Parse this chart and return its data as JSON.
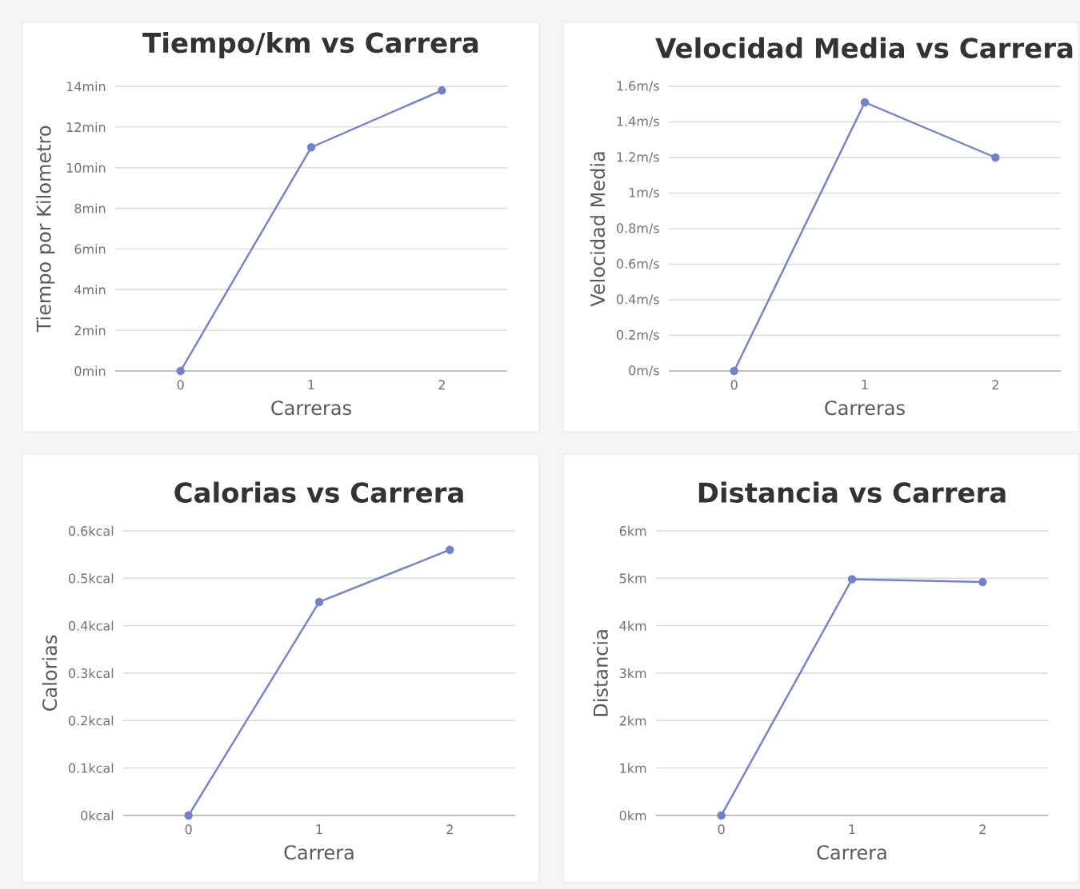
{
  "chart_data": [
    {
      "type": "line",
      "title": "Tiempo/km vs Carrera",
      "xlabel": "Carreras",
      "ylabel": "Tiempo por Kilometro",
      "x": [
        0,
        1,
        2
      ],
      "values": [
        0,
        11,
        13.8
      ],
      "color": "#7480c8",
      "marker": "circle",
      "grid": "y",
      "xlim": [
        -0.5,
        2.5
      ],
      "xticks": [
        0,
        1,
        2
      ],
      "ylim": [
        0,
        14
      ],
      "yticks": [
        {
          "value": 0,
          "label": "0min"
        },
        {
          "value": 2,
          "label": "2min"
        },
        {
          "value": 4,
          "label": "4min"
        },
        {
          "value": 6,
          "label": "6min"
        },
        {
          "value": 8,
          "label": "8min"
        },
        {
          "value": 10,
          "label": "10min"
        },
        {
          "value": 12,
          "label": "12min"
        },
        {
          "value": 14,
          "label": "14min"
        }
      ]
    },
    {
      "type": "line",
      "title": "Velocidad Media vs Carrera",
      "xlabel": "Carreras",
      "ylabel": "Velocidad Media",
      "x": [
        0,
        1,
        2
      ],
      "values": [
        0,
        1.51,
        1.2
      ],
      "color": "#7480c8",
      "marker": "circle",
      "grid": "y",
      "xlim": [
        -0.5,
        2.5
      ],
      "xticks": [
        0,
        1,
        2
      ],
      "ylim": [
        0,
        1.6
      ],
      "yticks": [
        {
          "value": 0,
          "label": "0m/s"
        },
        {
          "value": 0.2,
          "label": "0.2m/s"
        },
        {
          "value": 0.4,
          "label": "0.4m/s"
        },
        {
          "value": 0.6,
          "label": "0.6m/s"
        },
        {
          "value": 0.8,
          "label": "0.8m/s"
        },
        {
          "value": 1,
          "label": "1m/s"
        },
        {
          "value": 1.2,
          "label": "1.2m/s"
        },
        {
          "value": 1.4,
          "label": "1.4m/s"
        },
        {
          "value": 1.6,
          "label": "1.6m/s"
        }
      ]
    },
    {
      "type": "line",
      "title": "Calorias vs Carrera",
      "xlabel": "Carrera",
      "ylabel": "Calorias",
      "x": [
        0,
        1,
        2
      ],
      "values": [
        0,
        0.45,
        0.56
      ],
      "color": "#7480c8",
      "marker": "circle",
      "grid": "y",
      "xlim": [
        -0.5,
        2.5
      ],
      "xticks": [
        0,
        1,
        2
      ],
      "ylim": [
        0,
        0.6
      ],
      "yticks": [
        {
          "value": 0,
          "label": "0kcal"
        },
        {
          "value": 0.1,
          "label": "0.1kcal"
        },
        {
          "value": 0.2,
          "label": "0.2kcal"
        },
        {
          "value": 0.3,
          "label": "0.3kcal"
        },
        {
          "value": 0.4,
          "label": "0.4kcal"
        },
        {
          "value": 0.5,
          "label": "0.5kcal"
        },
        {
          "value": 0.6,
          "label": "0.6kcal"
        }
      ]
    },
    {
      "type": "line",
      "title": "Distancia vs Carrera",
      "xlabel": "Carrera",
      "ylabel": "Distancia",
      "x": [
        0,
        1,
        2
      ],
      "values": [
        0,
        4.98,
        4.92
      ],
      "color": "#7480c8",
      "marker": "circle",
      "grid": "y",
      "xlim": [
        -0.5,
        2.5
      ],
      "xticks": [
        0,
        1,
        2
      ],
      "ylim": [
        0,
        6
      ],
      "yticks": [
        {
          "value": 0,
          "label": "0km"
        },
        {
          "value": 1,
          "label": "1km"
        },
        {
          "value": 2,
          "label": "2km"
        },
        {
          "value": 3,
          "label": "3km"
        },
        {
          "value": 4,
          "label": "4km"
        },
        {
          "value": 5,
          "label": "5km"
        },
        {
          "value": 6,
          "label": "6km"
        }
      ]
    }
  ]
}
